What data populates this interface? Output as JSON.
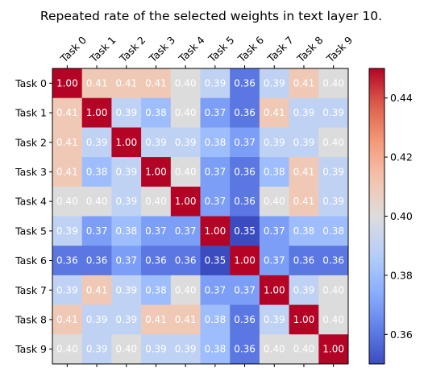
{
  "chart_data": {
    "type": "heatmap",
    "title": "Repeated rate of the selected weights in text layer 10.",
    "x_categories": [
      "Task 0",
      "Task 1",
      "Task 2",
      "Task 3",
      "Task 4",
      "Task 5",
      "Task 6",
      "Task 7",
      "Task 8",
      "Task 9"
    ],
    "y_categories": [
      "Task 0",
      "Task 1",
      "Task 2",
      "Task 3",
      "Task 4",
      "Task 5",
      "Task 6",
      "Task 7",
      "Task 8",
      "Task 9"
    ],
    "values": [
      [
        1.0,
        0.41,
        0.41,
        0.41,
        0.4,
        0.39,
        0.36,
        0.39,
        0.41,
        0.4
      ],
      [
        0.41,
        1.0,
        0.39,
        0.38,
        0.4,
        0.37,
        0.36,
        0.41,
        0.39,
        0.39
      ],
      [
        0.41,
        0.39,
        1.0,
        0.39,
        0.39,
        0.38,
        0.37,
        0.39,
        0.39,
        0.4
      ],
      [
        0.41,
        0.38,
        0.39,
        1.0,
        0.4,
        0.37,
        0.36,
        0.38,
        0.41,
        0.39
      ],
      [
        0.4,
        0.4,
        0.39,
        0.4,
        1.0,
        0.37,
        0.36,
        0.4,
        0.41,
        0.39
      ],
      [
        0.39,
        0.37,
        0.38,
        0.37,
        0.37,
        1.0,
        0.35,
        0.37,
        0.38,
        0.38
      ],
      [
        0.36,
        0.36,
        0.37,
        0.36,
        0.36,
        0.35,
        1.0,
        0.37,
        0.36,
        0.36
      ],
      [
        0.39,
        0.41,
        0.39,
        0.38,
        0.4,
        0.37,
        0.37,
        1.0,
        0.39,
        0.4
      ],
      [
        0.41,
        0.39,
        0.39,
        0.41,
        0.41,
        0.38,
        0.36,
        0.39,
        1.0,
        0.4
      ],
      [
        0.4,
        0.39,
        0.4,
        0.39,
        0.39,
        0.38,
        0.36,
        0.4,
        0.4,
        1.0
      ]
    ],
    "cell_value_format": "2 decimals",
    "x_tick_position": "top",
    "x_tick_rotation": 45,
    "colormap": "coolwarm",
    "colorbar": {
      "range": [
        0.35,
        0.45
      ],
      "ticks": [
        0.36,
        0.38,
        0.4,
        0.42,
        0.44
      ],
      "tick_labels": [
        "0.36",
        "0.38",
        "0.40",
        "0.42",
        "0.44"
      ],
      "placement": "right"
    },
    "grid": false
  }
}
